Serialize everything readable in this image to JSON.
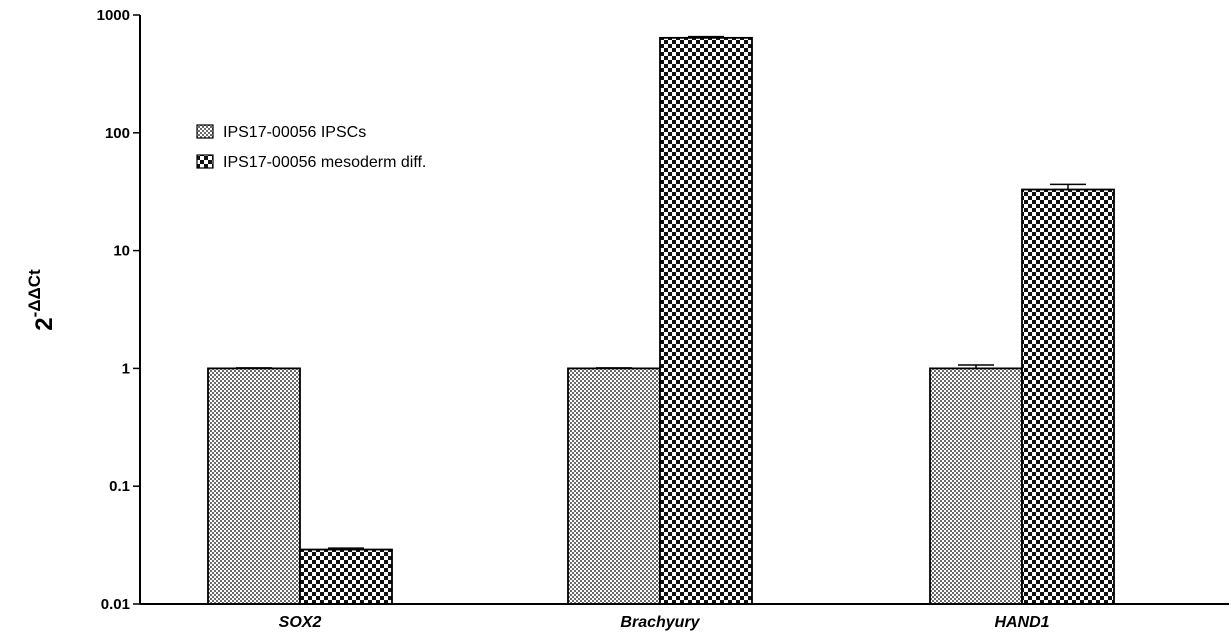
{
  "chart_data": {
    "type": "bar",
    "scale": "log",
    "categories": [
      "SOX2",
      "Brachyury",
      "HAND1"
    ],
    "series": [
      {
        "name": "IPS17-00056 IPSCs",
        "pattern": "fine-checker",
        "values": [
          1.0,
          1.0,
          1.0
        ],
        "errors": [
          0.01,
          0.01,
          0.07
        ]
      },
      {
        "name": "IPS17-00056 mesoderm diff.",
        "pattern": "coarse-checker",
        "values": [
          0.029,
          640,
          33
        ],
        "errors": [
          0.0008,
          15,
          3.5
        ]
      }
    ],
    "ylabel": {
      "base": "2",
      "exponent": "-ΔΔCt"
    },
    "ylim": [
      0.01,
      1000
    ],
    "yticks": [
      {
        "value": 0.01,
        "label": "0.01"
      },
      {
        "value": 0.1,
        "label": "0.1"
      },
      {
        "value": 1,
        "label": "1"
      },
      {
        "value": 10,
        "label": "10"
      },
      {
        "value": 100,
        "label": "100"
      },
      {
        "value": 1000,
        "label": "1000"
      }
    ],
    "legend_position": "top-left",
    "grid": false
  }
}
